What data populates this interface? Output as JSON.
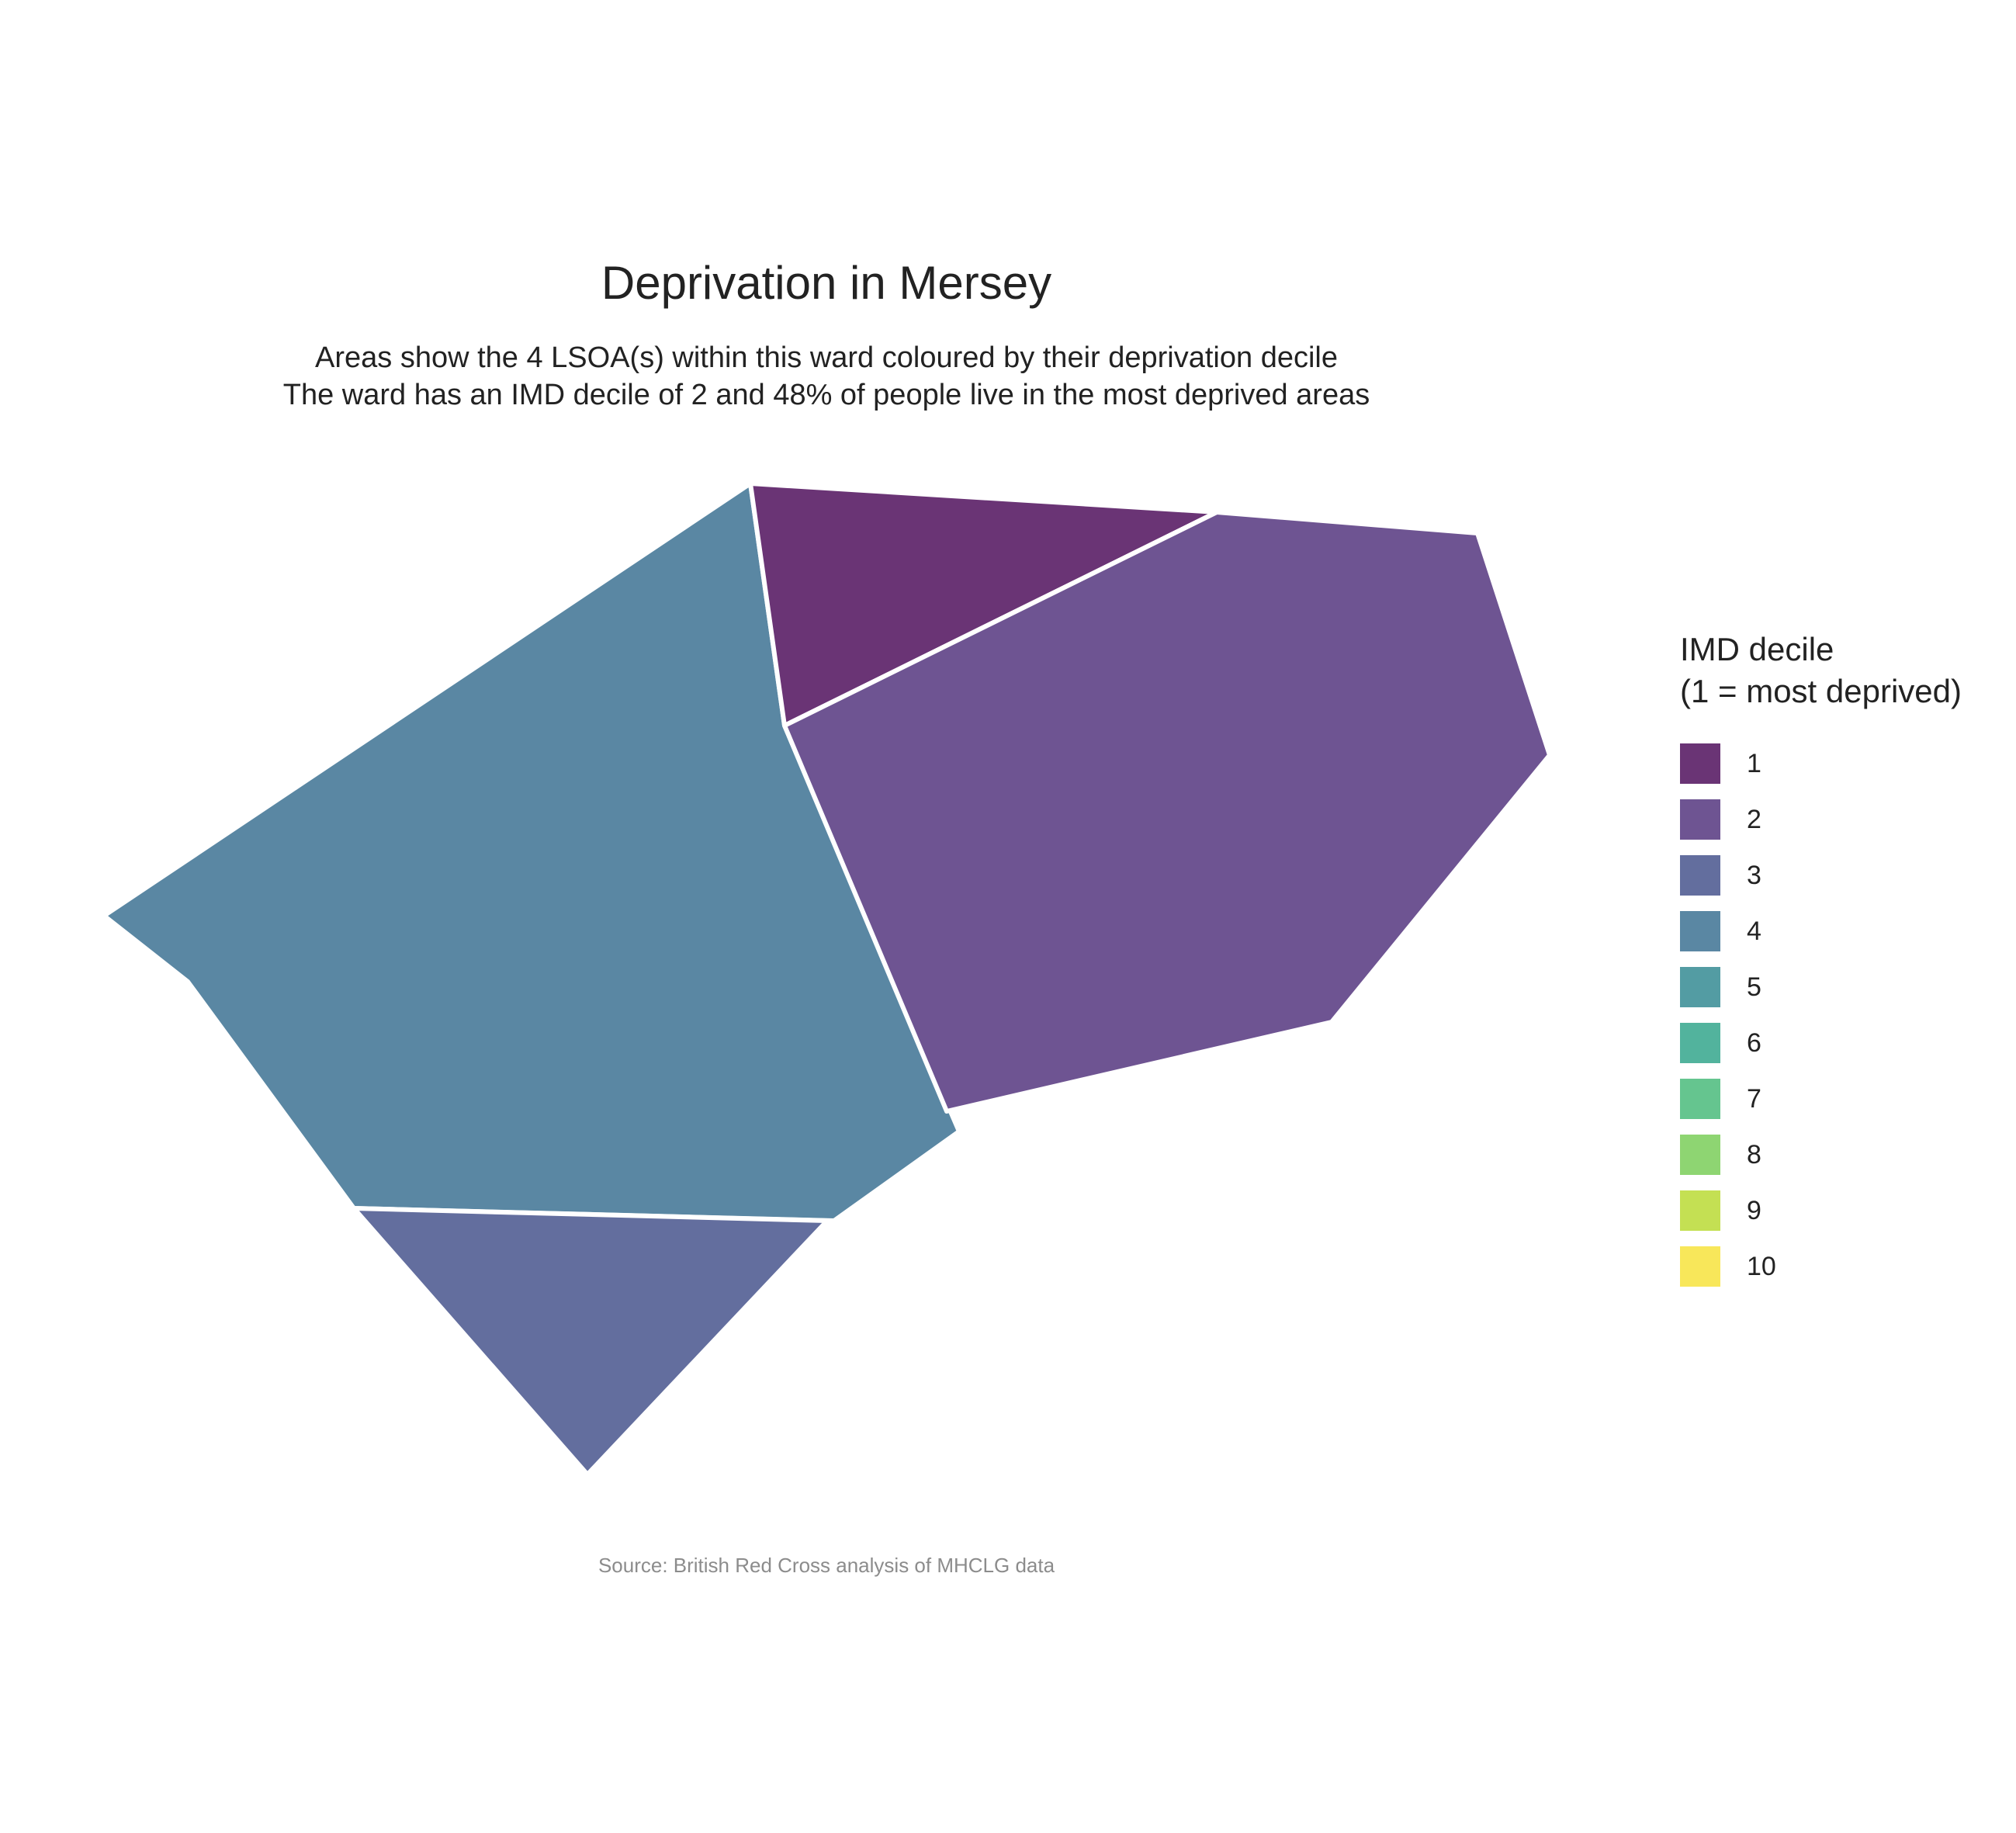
{
  "title": "Deprivation in Mersey",
  "subtitle_line1": "Areas show the 4 LSOA(s) within this ward coloured by their deprivation decile",
  "subtitle_line2": "The ward has an IMD decile of 2 and 48% of people live in the most deprived areas",
  "caption": "Source: British Red Cross analysis of MHCLG data",
  "legend": {
    "title_line1": "IMD decile",
    "title_line2": "(1 = most deprived)",
    "items": [
      {
        "label": "1",
        "color": "#6a3475"
      },
      {
        "label": "2",
        "color": "#6e5492"
      },
      {
        "label": "3",
        "color": "#636e9e"
      },
      {
        "label": "4",
        "color": "#5a87a3"
      },
      {
        "label": "5",
        "color": "#539ca3"
      },
      {
        "label": "6",
        "color": "#52b39d"
      },
      {
        "label": "7",
        "color": "#65c58f"
      },
      {
        "label": "8",
        "color": "#8ed572"
      },
      {
        "label": "9",
        "color": "#c4e053"
      },
      {
        "label": "10",
        "color": "#f8e75a"
      }
    ]
  },
  "areas": [
    {
      "id": "lsoa-a",
      "decile": 4
    },
    {
      "id": "lsoa-b",
      "decile": 1
    },
    {
      "id": "lsoa-c",
      "decile": 2
    },
    {
      "id": "lsoa-d",
      "decile": 3
    }
  ]
}
